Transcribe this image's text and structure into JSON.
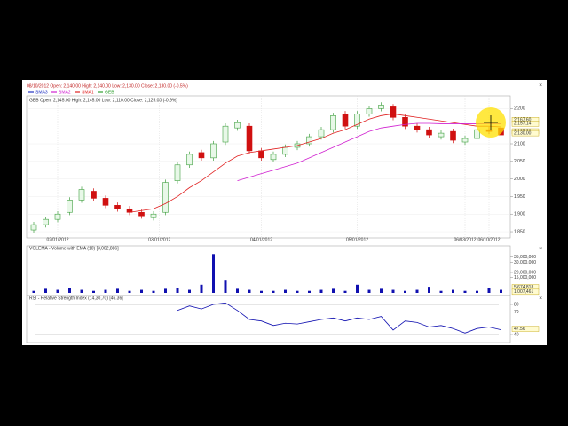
{
  "header": "08/10/2012 Open: 2,140.00 High: 2,140.00 Low: 2,130.00 Close: 2,130.00 (-0.5%)",
  "chart_data": [
    {
      "type": "candlestick",
      "title": "GEB Open: 2,145.00 High: 2,145.00 Low: 2,110.00 Close: 2,125.00 (-0.9%)",
      "legend": [
        {
          "name": "SMA3",
          "color": "#2030c0"
        },
        {
          "name": "SMA2",
          "color": "#d020d0"
        },
        {
          "name": "SMA1",
          "color": "#e02020"
        },
        {
          "name": "GEB",
          "color": "#30a030"
        }
      ],
      "open": [
        1855,
        1870,
        1885,
        1905,
        1940,
        1965,
        1945,
        1925,
        1915,
        1905,
        1890,
        1905,
        1995,
        2040,
        2075,
        2060,
        2105,
        2145,
        2150,
        2080,
        2055,
        2070,
        2090,
        2100,
        2120,
        2140,
        2185,
        2150,
        2185,
        2200,
        2205,
        2175,
        2150,
        2140,
        2120,
        2135,
        2105,
        2115,
        2140,
        2145
      ],
      "high": [
        1878,
        1893,
        1908,
        1948,
        1978,
        1973,
        1953,
        1933,
        1923,
        1913,
        1908,
        1998,
        2048,
        2078,
        2083,
        2108,
        2158,
        2168,
        2158,
        2088,
        2078,
        2098,
        2108,
        2128,
        2148,
        2188,
        2193,
        2193,
        2208,
        2218,
        2213,
        2183,
        2158,
        2148,
        2138,
        2143,
        2123,
        2148,
        2148,
        2145
      ],
      "low": [
        1847,
        1862,
        1877,
        1897,
        1932,
        1937,
        1917,
        1907,
        1897,
        1887,
        1882,
        1897,
        1987,
        2032,
        2052,
        2052,
        2097,
        2137,
        2072,
        2052,
        2047,
        2062,
        2082,
        2092,
        2112,
        2132,
        2142,
        2142,
        2177,
        2192,
        2167,
        2142,
        2132,
        2117,
        2112,
        2102,
        2097,
        2107,
        2127,
        2110
      ],
      "close": [
        1870,
        1885,
        1900,
        1940,
        1970,
        1945,
        1925,
        1915,
        1905,
        1895,
        1900,
        1990,
        2040,
        2070,
        2060,
        2100,
        2150,
        2160,
        2080,
        2060,
        2070,
        2090,
        2100,
        2120,
        2140,
        2180,
        2150,
        2185,
        2200,
        2210,
        2175,
        2150,
        2140,
        2125,
        2130,
        2110,
        2115,
        2140,
        2135,
        2125
      ],
      "up_color": "#40a040",
      "down_color": "#d01010",
      "lines": [
        {
          "color": "#e02020",
          "values": [
            null,
            null,
            null,
            null,
            null,
            null,
            null,
            null,
            1905,
            1910,
            1915,
            1930,
            1950,
            1975,
            1995,
            2020,
            2045,
            2065,
            2075,
            2080,
            2085,
            2090,
            2095,
            2105,
            2115,
            2130,
            2140,
            2155,
            2170,
            2180,
            2185,
            2180,
            2175,
            2170,
            2165,
            2160,
            2155,
            2150,
            2150,
            2148
          ]
        },
        {
          "color": "#d020d0",
          "values": [
            null,
            null,
            null,
            null,
            null,
            null,
            null,
            null,
            null,
            null,
            null,
            null,
            null,
            null,
            null,
            null,
            null,
            1995,
            2005,
            2015,
            2025,
            2035,
            2045,
            2060,
            2075,
            2090,
            2105,
            2120,
            2135,
            2145,
            2150,
            2155,
            2158,
            2158,
            2157,
            2157,
            2157,
            2157,
            2157,
            2157
          ]
        }
      ],
      "xlim": [
        -0.6,
        39.6
      ],
      "xticks": [
        {
          "value": 2,
          "label": "02/01/2012"
        },
        {
          "value": 10.5,
          "label": "03/01/2012"
        },
        {
          "value": 19,
          "label": "04/01/2012"
        },
        {
          "value": 27,
          "label": "05/01/2012"
        },
        {
          "value": 36,
          "label": "06/03/2012"
        },
        {
          "value": 38,
          "label": "06/10/2012"
        }
      ],
      "ylim": [
        1840,
        2230
      ],
      "yticks": [
        {
          "value": 1850,
          "label": "1,850"
        },
        {
          "value": 1900,
          "label": "1,900"
        },
        {
          "value": 1950,
          "label": "1,950"
        },
        {
          "value": 2000,
          "label": "2,000"
        },
        {
          "value": 2050,
          "label": "2,050"
        },
        {
          "value": 2100,
          "label": "2,100"
        },
        {
          "value": 2200,
          "label": "2,200"
        }
      ],
      "markers": [
        {
          "value": 2167.6,
          "label": "2,167.60"
        },
        {
          "value": 2157.14,
          "label": "2,157.14"
        },
        {
          "value": 2135.26,
          "label": "2,135.26"
        },
        {
          "value": 2130,
          "label": "2,130.00"
        }
      ],
      "grid": true
    },
    {
      "type": "bar",
      "title": "VOLEMA - Volume with EMA (10) [3,002,886]",
      "color": "#1010b0",
      "values": [
        2000000,
        4000000,
        3000000,
        5000000,
        3000000,
        2000000,
        3000000,
        4000000,
        2000000,
        3000000,
        2000000,
        4000000,
        5000000,
        3000000,
        8000000,
        38000000,
        12000000,
        4000000,
        3000000,
        2000000,
        2000000,
        3000000,
        2000000,
        2000000,
        3000000,
        4000000,
        2000000,
        8000000,
        3000000,
        4000000,
        3000000,
        2000000,
        3000000,
        6000000,
        2000000,
        3000000,
        2000000,
        2000000,
        5000000,
        3002886
      ],
      "xlim": [
        -0.6,
        39.6
      ],
      "ylim": [
        0,
        40000000
      ],
      "yticks": [
        {
          "value": 35000000,
          "label": "35,000,000"
        },
        {
          "value": 30000000,
          "label": "30,000,000"
        },
        {
          "value": 20000000,
          "label": "20,000,000"
        },
        {
          "value": 15000000,
          "label": "15,000,000"
        }
      ],
      "markers": [
        {
          "value": 5674818,
          "label": "5,674,818"
        },
        {
          "value": 1007461,
          "label": "1,007,461"
        }
      ]
    },
    {
      "type": "line",
      "title": "RSI - Relative Strength Index (14,30,70) [46.36]",
      "color": "#1010b0",
      "values": [
        null,
        null,
        null,
        null,
        null,
        null,
        null,
        null,
        null,
        null,
        null,
        null,
        72,
        78,
        74,
        80,
        82,
        72,
        60,
        58,
        52,
        55,
        54,
        57,
        60,
        62,
        58,
        62,
        60,
        64,
        46,
        58,
        56,
        50,
        52,
        48,
        42,
        48,
        50,
        46.36
      ],
      "xlim": [
        -0.6,
        39.6
      ],
      "ylim": [
        30,
        85
      ],
      "yticks": [
        80,
        70,
        40
      ],
      "markers": [
        47.56
      ]
    }
  ]
}
